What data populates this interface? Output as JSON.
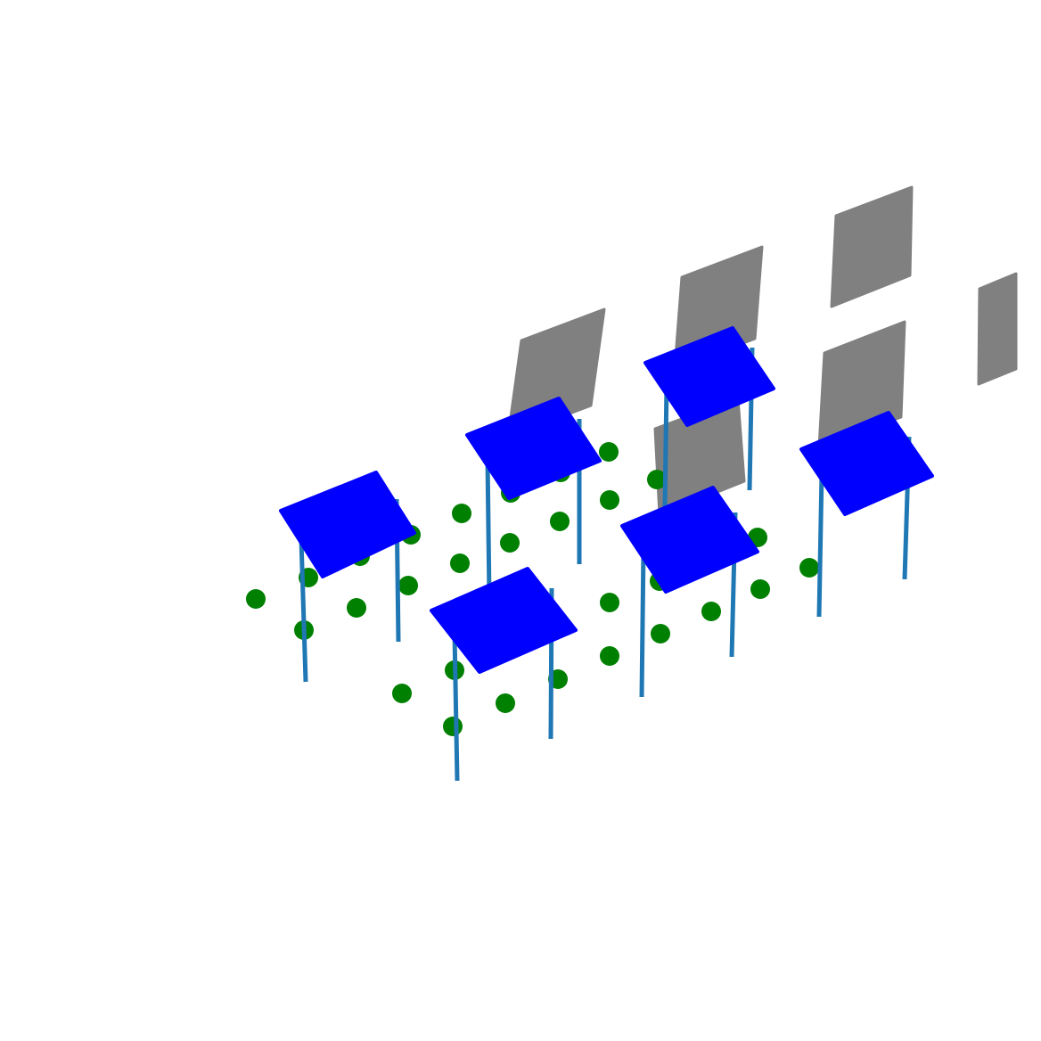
{
  "colors": {
    "background": "#ffffff",
    "panel": "#0000ff",
    "post": "#1f77b4",
    "shadow": "#808080",
    "ground_point": "#008000"
  },
  "panel_count": 6,
  "shadow_count": 7,
  "ground_point_count": 40
}
